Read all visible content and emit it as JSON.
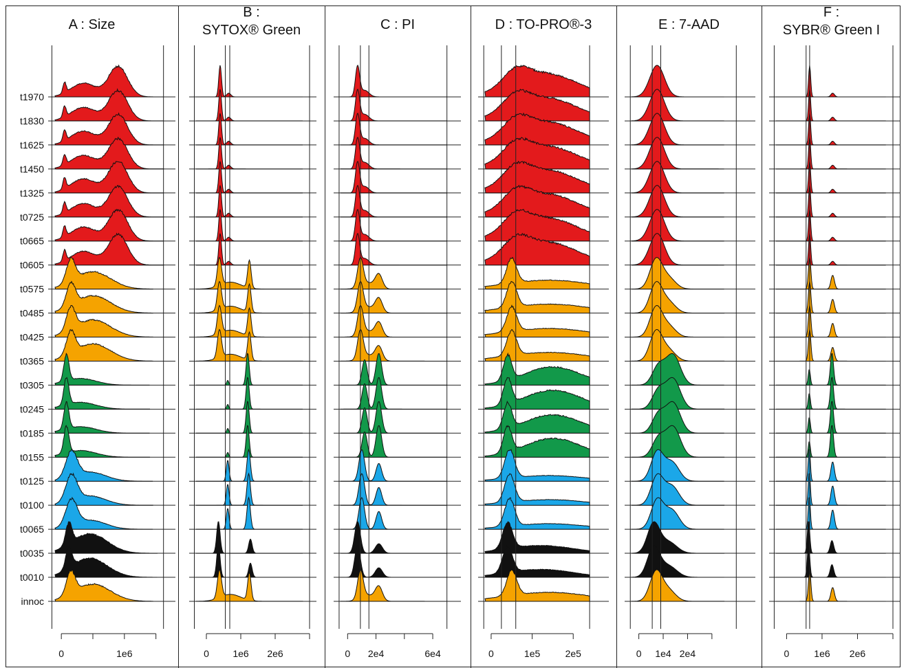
{
  "chart_data": {
    "type": "area",
    "colors": {
      "red": "#e31a1c",
      "orange": "#f5a300",
      "green": "#12994a",
      "blue": "#1ba7e8",
      "black": "#111111"
    },
    "samples": [
      "t1970",
      "t1830",
      "t1625",
      "t1450",
      "t1325",
      "t0725",
      "t0665",
      "t0605",
      "t0575",
      "t0485",
      "t0425",
      "t0365",
      "t0305",
      "t0245",
      "t0185",
      "t0155",
      "t0125",
      "t0100",
      "t0065",
      "t0035",
      "t0010",
      "innoc"
    ],
    "sample_colors": [
      "red",
      "red",
      "red",
      "red",
      "red",
      "red",
      "red",
      "red",
      "orange",
      "orange",
      "orange",
      "orange",
      "green",
      "green",
      "green",
      "green",
      "blue",
      "blue",
      "blue",
      "black",
      "black",
      "orange"
    ],
    "panels": [
      {
        "title_lines": [
          "A : Size"
        ],
        "xlim": [
          -100000,
          1700000
        ],
        "ticks": [
          {
            "v": 0,
            "label": "0"
          },
          {
            "v": 1000000,
            "label": "1e6"
          }
        ],
        "minor_ticks": [
          500000,
          1500000
        ],
        "vlines": [],
        "axis_lines": [
          -150000,
          1620000
        ],
        "groups": {
          "red": {
            "peaks": [
              [
                900000,
                150000,
                1.0
              ],
              [
                350000,
                200000,
                0.45
              ],
              [
                50000,
                25000,
                0.35
              ]
            ],
            "tail": 0.0,
            "end": 1620000
          },
          "orange": {
            "peaks": [
              [
                150000,
                70000,
                1.0
              ],
              [
                500000,
                280000,
                0.75
              ]
            ],
            "tail": 0.0,
            "end": 1450000
          },
          "green": {
            "peaks": [
              [
                80000,
                40000,
                1.0
              ],
              [
                300000,
                250000,
                0.25
              ]
            ],
            "tail": 0.0,
            "end": 1400000
          },
          "blue": {
            "peaks": [
              [
                160000,
                90000,
                1.0
              ],
              [
                450000,
                250000,
                0.35
              ]
            ],
            "tail": 0.0,
            "end": 1450000
          },
          "black": {
            "peaks": [
              [
                120000,
                50000,
                0.9
              ],
              [
                450000,
                280000,
                0.8
              ]
            ],
            "tail": 0.0,
            "end": 1520000
          }
        }
      },
      {
        "title_lines": [
          "B :",
          "SYTOX® Green"
        ],
        "xlim": [
          -300000,
          3000000
        ],
        "ticks": [
          {
            "v": 0,
            "label": "0"
          },
          {
            "v": 1000000,
            "label": "1e6"
          },
          {
            "v": 2000000,
            "label": "2e6"
          }
        ],
        "minor_ticks": [
          3000000
        ],
        "vlines": [
          550000,
          680000
        ],
        "axis_lines": [
          -350000,
          3000000
        ],
        "groups": {
          "red": {
            "peaks": [
              [
                400000,
                40000,
                1.0
              ],
              [
                650000,
                60000,
                0.12
              ]
            ],
            "tail": 0.0,
            "end": 2800000
          },
          "orange": {
            "peaks": [
              [
                380000,
                60000,
                0.6
              ],
              [
                1250000,
                50000,
                0.6
              ],
              [
                700000,
                300000,
                0.15
              ]
            ],
            "tail": 0.0,
            "end": 2800000
          },
          "green": {
            "peaks": [
              [
                620000,
                30000,
                0.15
              ],
              [
                1200000,
                45000,
                1.0
              ]
            ],
            "tail": 0.0,
            "end": 2800000
          },
          "blue": {
            "peaks": [
              [
                620000,
                40000,
                0.3
              ],
              [
                1230000,
                50000,
                0.45
              ]
            ],
            "tail": 0.0,
            "end": 2800000
          },
          "black": {
            "peaks": [
              [
                350000,
                50000,
                0.9
              ],
              [
                1280000,
                50000,
                0.4
              ]
            ],
            "tail": 0.0,
            "end": 2800000
          }
        }
      },
      {
        "title_lines": [
          "C : PI"
        ],
        "xlim": [
          -5000,
          75000
        ],
        "ticks": [
          {
            "v": 0,
            "label": "0"
          },
          {
            "v": 20000,
            "label": "2e4"
          },
          {
            "v": 60000,
            "label": "6e4"
          }
        ],
        "minor_ticks": [
          40000
        ],
        "vlines": [
          9000,
          15000
        ],
        "axis_lines": [
          -6000,
          70000
        ],
        "groups": {
          "red": {
            "peaks": [
              [
                7000,
                1500,
                1.0
              ],
              [
                12000,
                3000,
                0.22
              ]
            ],
            "tail": 0.0,
            "end": 70000
          },
          "orange": {
            "peaks": [
              [
                9000,
                2000,
                0.9
              ],
              [
                22000,
                2500,
                0.45
              ],
              [
                14000,
                5000,
                0.2
              ]
            ],
            "tail": 0.0,
            "end": 70000
          },
          "green": {
            "peaks": [
              [
                12000,
                1800,
                0.8
              ],
              [
                22000,
                2000,
                1.0
              ]
            ],
            "tail": 0.0,
            "end": 70000
          },
          "blue": {
            "peaks": [
              [
                10000,
                2000,
                0.8
              ],
              [
                22000,
                2000,
                0.45
              ]
            ],
            "tail": 0.0,
            "end": 70000
          },
          "black": {
            "peaks": [
              [
                7000,
                2000,
                1.0
              ],
              [
                22000,
                2500,
                0.3
              ]
            ],
            "tail": 0.0,
            "end": 70000
          }
        }
      },
      {
        "title_lines": [
          "D : TO-PRO®-3"
        ],
        "xlim": [
          -15000,
          270000
        ],
        "ticks": [
          {
            "v": 0,
            "label": "0"
          },
          {
            "v": 100000,
            "label": "1e5"
          },
          {
            "v": 200000,
            "label": "2e5"
          }
        ],
        "minor_ticks": [],
        "vlines": [
          25000,
          60000
        ],
        "axis_lines": [
          -18000,
          240000
        ],
        "groups": {
          "red": {
            "peaks": [
              [
                60000,
                30000,
                0.6
              ],
              [
                130000,
                80000,
                1.0
              ]
            ],
            "tail": 0.0,
            "end": 240000
          },
          "orange": {
            "peaks": [
              [
                50000,
                12000,
                1.0
              ],
              [
                140000,
                100000,
                0.35
              ]
            ],
            "tail": 0.0,
            "end": 240000
          },
          "green": {
            "peaks": [
              [
                40000,
                10000,
                0.9
              ],
              [
                150000,
                70000,
                0.65
              ]
            ],
            "tail": 0.0,
            "end": 240000
          },
          "blue": {
            "peaks": [
              [
                45000,
                12000,
                1.0
              ],
              [
                140000,
                90000,
                0.2
              ]
            ],
            "tail": 0.0,
            "end": 240000
          },
          "black": {
            "peaks": [
              [
                40000,
                12000,
                1.0
              ],
              [
                120000,
                80000,
                0.3
              ]
            ],
            "tail": 0.0,
            "end": 240000
          }
        }
      },
      {
        "title_lines": [
          "E : 7-AAD"
        ],
        "xlim": [
          -3000,
          45000
        ],
        "ticks": [
          {
            "v": 0,
            "label": "0"
          },
          {
            "v": 10000,
            "label": "1e4"
          },
          {
            "v": 20000,
            "label": "2e4"
          }
        ],
        "minor_ticks": [
          30000
        ],
        "vlines": [
          5500,
          9000
        ],
        "axis_lines": [
          -3500,
          40000
        ],
        "groups": {
          "red": {
            "peaks": [
              [
                7500,
                3000,
                1.0
              ]
            ],
            "tail": 0.0,
            "end": 35000
          },
          "orange": {
            "peaks": [
              [
                7000,
                2500,
                1.0
              ],
              [
                12000,
                3000,
                0.4
              ]
            ],
            "tail": 0.0,
            "end": 35000
          },
          "green": {
            "peaks": [
              [
                8000,
                2500,
                0.6
              ],
              [
                14000,
                3000,
                1.0
              ]
            ],
            "tail": 0.0,
            "end": 35000
          },
          "blue": {
            "peaks": [
              [
                7500,
                2500,
                0.9
              ],
              [
                13500,
                3000,
                0.6
              ]
            ],
            "tail": 0.0,
            "end": 35000
          },
          "black": {
            "peaks": [
              [
                6000,
                2500,
                1.0
              ],
              [
                12000,
                3500,
                0.4
              ]
            ],
            "tail": 0.0,
            "end": 35000
          }
        }
      },
      {
        "title_lines": [
          "F :",
          "SYBR® Green I"
        ],
        "xlim": [
          -300000,
          3000000
        ],
        "ticks": [
          {
            "v": 0,
            "label": "0"
          },
          {
            "v": 1000000,
            "label": "1e6"
          },
          {
            "v": 2000000,
            "label": "2e6"
          }
        ],
        "minor_ticks": [
          3000000
        ],
        "vlines": [
          550000,
          650000
        ],
        "axis_lines": [
          -350000,
          3000000
        ],
        "groups": {
          "red": {
            "peaks": [
              [
                650000,
                30000,
                1.0
              ],
              [
                1300000,
                50000,
                0.12
              ]
            ],
            "tail": 0.0,
            "end": 2800000
          },
          "orange": {
            "peaks": [
              [
                650000,
                35000,
                0.8
              ],
              [
                1300000,
                50000,
                0.35
              ]
            ],
            "tail": 0.0,
            "end": 2800000
          },
          "green": {
            "peaks": [
              [
                640000,
                30000,
                0.5
              ],
              [
                1280000,
                45000,
                1.0
              ]
            ],
            "tail": 0.0,
            "end": 2800000
          },
          "blue": {
            "peaks": [
              [
                640000,
                30000,
                0.6
              ],
              [
                1300000,
                50000,
                0.35
              ]
            ],
            "tail": 0.0,
            "end": 2800000
          },
          "black": {
            "peaks": [
              [
                620000,
                35000,
                0.9
              ],
              [
                1280000,
                50000,
                0.35
              ]
            ],
            "tail": 0.0,
            "end": 2800000
          }
        }
      }
    ]
  }
}
